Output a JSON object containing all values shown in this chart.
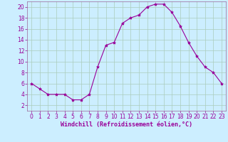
{
  "x": [
    0,
    1,
    2,
    3,
    4,
    5,
    6,
    7,
    8,
    9,
    10,
    11,
    12,
    13,
    14,
    15,
    16,
    17,
    18,
    19,
    20,
    21,
    22,
    23
  ],
  "y": [
    6,
    5,
    4,
    4,
    4,
    3,
    3,
    4,
    9,
    13,
    13.5,
    17,
    18,
    18.5,
    20,
    20.5,
    20.5,
    19,
    16.5,
    13.5,
    11,
    9,
    8,
    6
  ],
  "line_color": "#990099",
  "marker": "*",
  "marker_size": 3,
  "bg_color": "#cceeff",
  "grid_color": "#aaccbb",
  "xlabel": "Windchill (Refroidissement éolien,°C)",
  "xlabel_color": "#990099",
  "tick_color": "#990099",
  "spine_color": "#996699",
  "ylim": [
    1,
    21
  ],
  "xlim": [
    -0.5,
    23.5
  ],
  "yticks": [
    2,
    4,
    6,
    8,
    10,
    12,
    14,
    16,
    18,
    20
  ],
  "xticks": [
    0,
    1,
    2,
    3,
    4,
    5,
    6,
    7,
    8,
    9,
    10,
    11,
    12,
    13,
    14,
    15,
    16,
    17,
    18,
    19,
    20,
    21,
    22,
    23
  ],
  "tick_fontsize": 5.5,
  "xlabel_fontsize": 6.0
}
